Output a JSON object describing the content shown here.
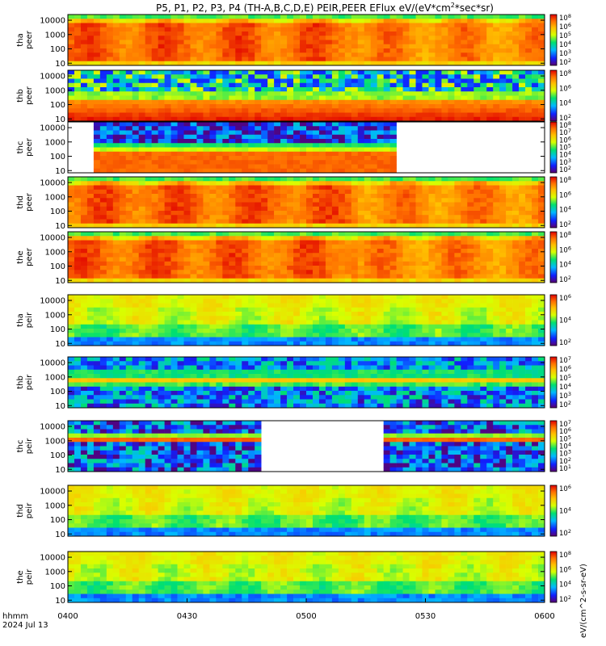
{
  "title": "P5, P1, P2, P3, P4 (TH-A,B,C,D,E) PEIR,PEER EFlux eV/(eV*cm",
  "title_sup": "2",
  "title_end": "*sec*sr)",
  "colorbar_unit_label": "eV/(cm^2-s-sr-eV)",
  "x_axis": {
    "label": "hhmm",
    "date": "2024 Jul 13",
    "ticks": [
      "0400",
      "0430",
      "0500",
      "0530",
      "0600"
    ]
  },
  "y_ticks": [
    "10",
    "100",
    "1000",
    "10000"
  ],
  "chart_data": {
    "type": "heatmap",
    "x_range": [
      "04:00",
      "06:00"
    ],
    "y_scale": "log",
    "y_range_eV": [
      7,
      25000
    ],
    "colormap": [
      "#5a0070",
      "#1020ff",
      "#00b8ff",
      "#00e070",
      "#d8ff00",
      "#ffc000",
      "#ff7000",
      "#e00000"
    ],
    "panels": [
      {
        "probe": "tha",
        "species": "peer",
        "cbar_ticks": [
          "10^2",
          "10^3",
          "10^4",
          "10^5",
          "10^6",
          "10^8"
        ]
      },
      {
        "probe": "thb",
        "species": "peer",
        "cbar_ticks": [
          "10^2",
          "10^4",
          "10^6",
          "10^8"
        ]
      },
      {
        "probe": "thc",
        "species": "peer",
        "data_gaps": [
          [
            "04:00",
            "04:07"
          ],
          [
            "05:22",
            "06:00"
          ]
        ],
        "cbar_ticks": [
          "10^2",
          "10^3",
          "10^4",
          "10^5",
          "10^6",
          "10^7",
          "10^8"
        ]
      },
      {
        "probe": "thd",
        "species": "peer",
        "cbar_ticks": [
          "10^2",
          "10^4",
          "10^6",
          "10^8"
        ]
      },
      {
        "probe": "the",
        "species": "peer",
        "cbar_ticks": [
          "10^2",
          "10^4",
          "10^6",
          "10^8"
        ]
      },
      {
        "probe": "tha",
        "species": "peir",
        "cbar_ticks": [
          "10^2",
          "10^4",
          "10^6"
        ]
      },
      {
        "probe": "thb",
        "species": "peir",
        "cbar_ticks": [
          "10^2",
          "10^3",
          "10^4",
          "10^5",
          "10^6",
          "10^7"
        ]
      },
      {
        "probe": "thc",
        "species": "peir",
        "data_gaps": [
          [
            "04:48",
            "05:20"
          ]
        ],
        "cbar_ticks": [
          "10^1",
          "10^2",
          "10^3",
          "10^4",
          "10^5",
          "10^6",
          "10^7"
        ]
      },
      {
        "probe": "thd",
        "species": "peir",
        "cbar_ticks": [
          "10^2",
          "10^4",
          "10^6"
        ]
      },
      {
        "probe": "the",
        "species": "peir",
        "cbar_ticks": [
          "10^2",
          "10^4",
          "10^6",
          "10^8"
        ]
      }
    ]
  }
}
